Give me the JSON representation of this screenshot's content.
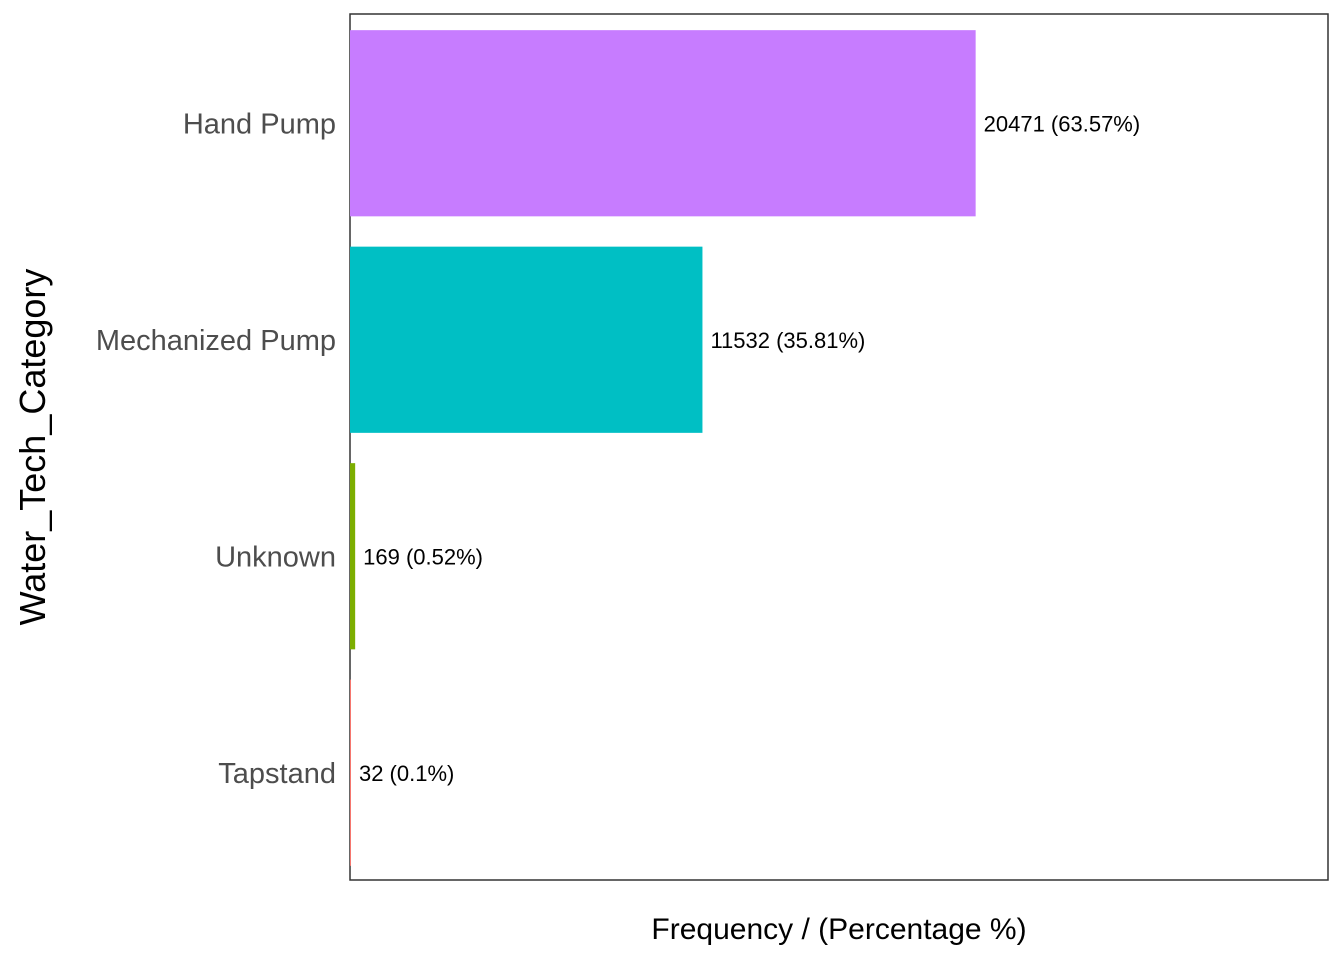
{
  "chart_data": {
    "type": "bar",
    "orientation": "horizontal",
    "title": "",
    "xlabel": "Frequency / (Percentage %)",
    "ylabel": "Water_Tech_Category",
    "categories": [
      "Hand Pump",
      "Mechanized Pump",
      "Unknown",
      "Tapstand"
    ],
    "values": [
      20471,
      11532,
      169,
      32
    ],
    "data_labels": [
      "20471 (63.57%)",
      "11532 (35.81%)",
      "169 (0.52%)",
      "32 (0.1%)"
    ],
    "colors": [
      "#C77CFF",
      "#00BFC4",
      "#7CAE00",
      "#F8766D"
    ],
    "xlim": [
      0,
      32000
    ],
    "grid": false,
    "legend": "none"
  }
}
